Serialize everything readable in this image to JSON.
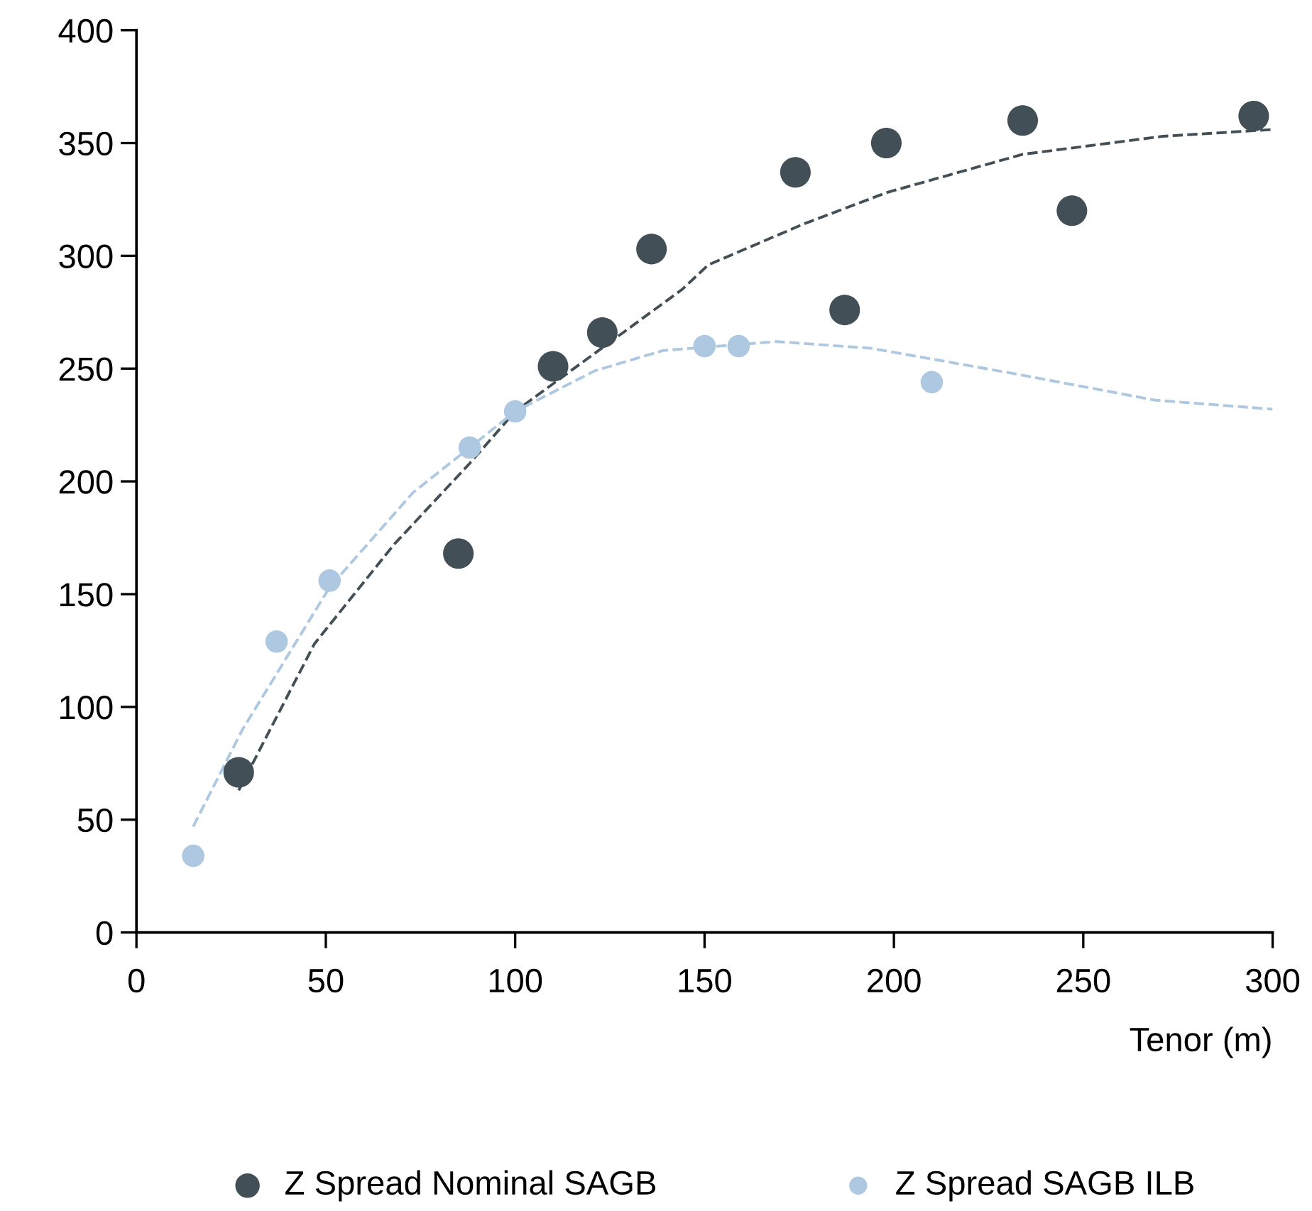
{
  "chart_data": {
    "type": "scatter",
    "xlabel": "Tenor (m)",
    "xlim": [
      0,
      300
    ],
    "ylim": [
      0,
      400
    ],
    "xticks": [
      0,
      50,
      100,
      150,
      200,
      250,
      300
    ],
    "yticks": [
      0,
      50,
      100,
      150,
      200,
      250,
      300,
      350,
      400
    ],
    "grid": false,
    "legend": "bottom",
    "marker": "circle",
    "series": [
      {
        "name": "Z Spread Nominal SAGB",
        "color": "#434f56",
        "x": [
          27,
          85,
          110,
          123,
          136,
          174,
          187,
          198,
          234,
          247,
          295
        ],
        "values": [
          71,
          168,
          251,
          266,
          303,
          337,
          276,
          350,
          360,
          320,
          362
        ]
      },
      {
        "name": "Z Spread SAGB ILB",
        "color": "#adc8e0",
        "x": [
          15,
          37,
          51,
          88,
          100,
          150,
          159,
          210
        ],
        "values": [
          34,
          129,
          156,
          215,
          231,
          260,
          260,
          244
        ]
      },
      {
        "type": "line",
        "color": "#434f56",
        "line_style": "dashed",
        "marker": "none",
        "x": [
          27,
          47,
          68,
          88,
          100,
          144,
          151,
          176,
          198,
          234,
          271,
          300
        ],
        "values": [
          63,
          128,
          172,
          208,
          231,
          285,
          296,
          314,
          328,
          345,
          353,
          356
        ]
      },
      {
        "type": "line",
        "color": "#adc8e0",
        "line_style": "dashed",
        "marker": "none",
        "x": [
          15,
          28,
          51,
          73,
          100,
          121,
          139,
          169,
          194,
          231,
          269,
          300
        ],
        "values": [
          47,
          90,
          153,
          195,
          231,
          249,
          258,
          262,
          259,
          248,
          236,
          232
        ]
      }
    ]
  }
}
